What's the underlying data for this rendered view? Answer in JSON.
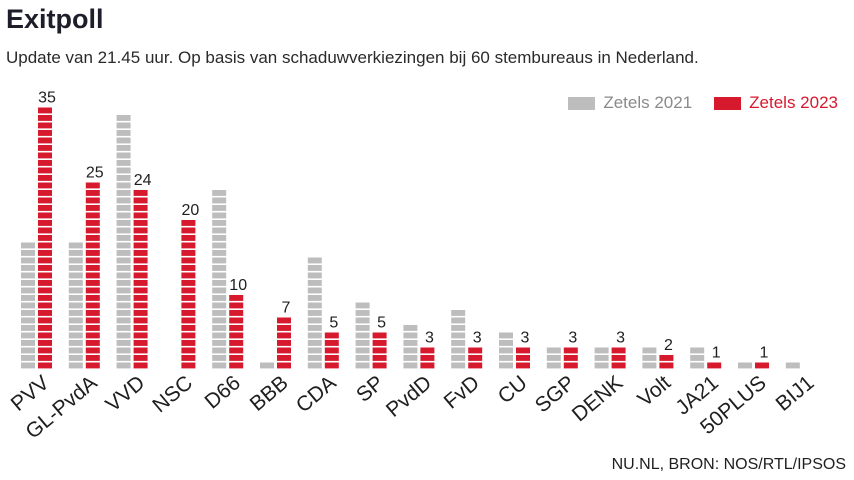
{
  "title": "Exitpoll",
  "subtitle": "Update van 21.45 uur. Op basis van schaduwverkiezingen bij 60 stembureaus in Nederland.",
  "source": "NU.NL, BRON: NOS/RTL/IPSOS",
  "colors": {
    "series_2021": "#bdbdbd",
    "series_2023": "#d7192d"
  },
  "chart_data": {
    "type": "bar",
    "title": "Exitpoll",
    "categories": [
      "PVV",
      "GL-PvdA",
      "VVD",
      "NSC",
      "D66",
      "BBB",
      "CDA",
      "SP",
      "PvdD",
      "FvD",
      "CU",
      "SGP",
      "DENK",
      "Volt",
      "JA21",
      "50PLUS",
      "BIJ1"
    ],
    "series": [
      {
        "name": "Zetels 2021",
        "values": [
          17,
          17,
          34,
          0,
          24,
          1,
          15,
          9,
          6,
          8,
          5,
          3,
          3,
          3,
          3,
          1,
          1
        ]
      },
      {
        "name": "Zetels 2023",
        "values": [
          35,
          25,
          24,
          20,
          10,
          7,
          5,
          5,
          3,
          3,
          3,
          3,
          3,
          2,
          1,
          1,
          0
        ]
      }
    ],
    "data_labels": [
      "35",
      "25",
      "24",
      "20",
      "10",
      "7",
      "5",
      "5",
      "3",
      "3",
      "3",
      "3",
      "3",
      "2",
      "1",
      "1",
      ""
    ],
    "legend_position": "top-right",
    "grid": false
  }
}
